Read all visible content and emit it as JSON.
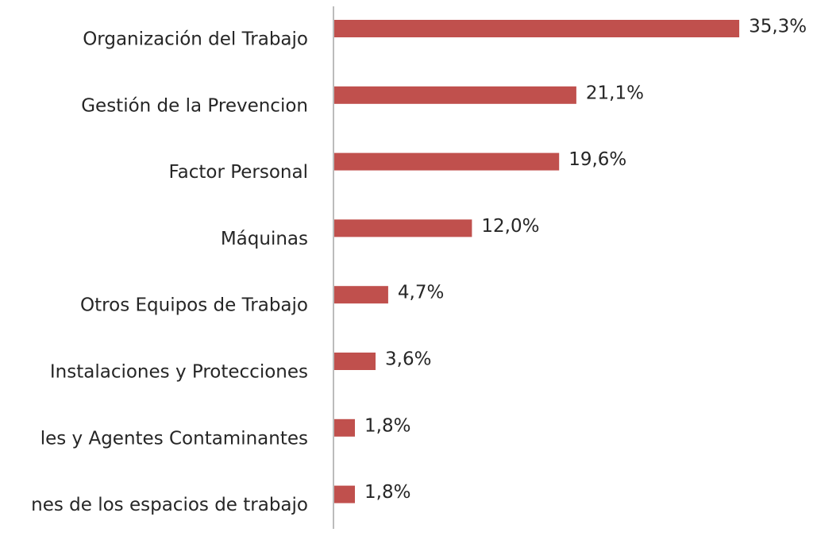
{
  "chart_data": {
    "type": "bar",
    "orientation": "horizontal",
    "categories": [
      "Organización del Trabajo",
      "Gestión de la Prevencion",
      "Factor Personal",
      "Máquinas",
      "Otros Equipos de Trabajo",
      "Instalaciones y Protecciones",
      "les y Agentes Contaminantes",
      "nes de los espacios de trabajo"
    ],
    "values": [
      35.3,
      21.1,
      19.6,
      12.0,
      4.7,
      3.6,
      1.8,
      1.8
    ],
    "value_labels": [
      "35,3%",
      "21,1%",
      "19,6%",
      "12,0%",
      "4,7%",
      "3,6%",
      "1,8%",
      "1,8%"
    ],
    "color": "#c0504d"
  }
}
